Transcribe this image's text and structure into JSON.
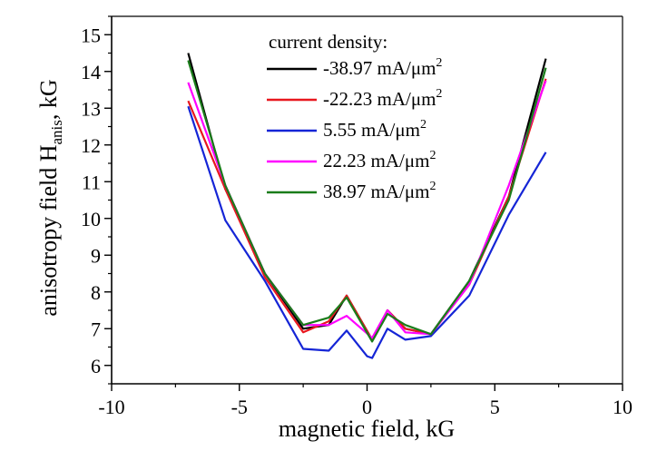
{
  "chart_data": {
    "type": "line",
    "xlabel": "magnetic field, kG",
    "ylabel_main": "anisotropy field H",
    "ylabel_sub": "anis",
    "ylabel_tail": ", kG",
    "xlim": [
      -10,
      10
    ],
    "ylim": [
      5.5,
      15.5
    ],
    "xticks": [
      -10,
      -5,
      0,
      5,
      10
    ],
    "yticks": [
      6,
      7,
      8,
      9,
      10,
      11,
      12,
      13,
      14,
      15
    ],
    "legend_title": "current density:",
    "legend_unit": "mA/μm",
    "legend_unit_sup": "2",
    "grid": false,
    "legend_position": "top-center",
    "series": [
      {
        "name": "-38.97",
        "color": "#000000",
        "x": [
          -7,
          -5.55,
          -4,
          -2.5,
          -1.5,
          -0.8,
          0.2,
          0.8,
          1.5,
          2.5,
          4,
          5.55,
          7
        ],
        "y": [
          14.5,
          10.8,
          8.5,
          7.0,
          7.1,
          7.9,
          6.7,
          7.5,
          7.0,
          6.85,
          8.3,
          10.6,
          14.35
        ]
      },
      {
        "name": "-22.23",
        "color": "#e8171e",
        "x": [
          -7,
          -5.55,
          -4,
          -2.5,
          -1.5,
          -0.8,
          0.2,
          0.8,
          1.5,
          2.5,
          4,
          5.55,
          7
        ],
        "y": [
          13.2,
          10.8,
          8.4,
          6.9,
          7.2,
          7.9,
          6.7,
          7.5,
          7.0,
          6.85,
          8.2,
          10.6,
          13.8
        ]
      },
      {
        "name": "5.55",
        "color": "#1525d6",
        "x": [
          -7,
          -5.55,
          -4,
          -2.5,
          -1.5,
          -0.8,
          0,
          0.2,
          0.8,
          1.5,
          2.5,
          4,
          5.55,
          7
        ],
        "y": [
          13.05,
          9.95,
          8.3,
          6.45,
          6.4,
          6.95,
          6.25,
          6.2,
          7.0,
          6.7,
          6.8,
          7.9,
          10.1,
          11.8
        ]
      },
      {
        "name": "22.23 ",
        "color": "#ff00ff",
        "x": [
          -7,
          -5.55,
          -4,
          -2.5,
          -1.5,
          -0.8,
          0.2,
          0.8,
          1.5,
          2.5,
          4,
          5.55,
          7
        ],
        "y": [
          13.7,
          10.9,
          8.5,
          7.1,
          7.1,
          7.35,
          6.75,
          7.5,
          6.9,
          6.85,
          8.2,
          10.9,
          13.75
        ]
      },
      {
        "name": "38.97",
        "color": "#1a7c1a",
        "x": [
          -7,
          -5.55,
          -4,
          -2.5,
          -1.5,
          -0.8,
          0.2,
          0.8,
          1.5,
          2.5,
          4,
          5.55,
          7
        ],
        "y": [
          14.3,
          10.9,
          8.5,
          7.1,
          7.3,
          7.85,
          6.65,
          7.4,
          7.1,
          6.85,
          8.3,
          10.5,
          14.1
        ]
      }
    ]
  }
}
